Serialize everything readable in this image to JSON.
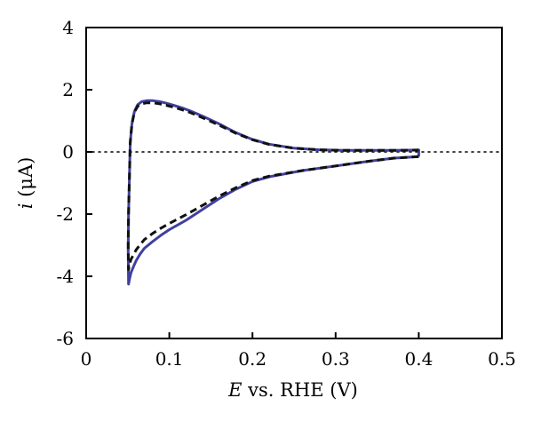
{
  "chart_data": {
    "type": "line",
    "xlabel_var": "E",
    "xlabel_rest": " vs. RHE (V)",
    "ylabel_var": "i",
    "ylabel_rest": " (μA)",
    "xlim": [
      0,
      0.5
    ],
    "ylim": [
      -6,
      4
    ],
    "xticks": [
      0,
      0.1,
      0.2,
      0.3,
      0.4,
      0.5
    ],
    "xtick_labels": [
      "0",
      "0.1",
      "0.2",
      "0.3",
      "0.4",
      "0.5"
    ],
    "yticks": [
      -6,
      -4,
      -2,
      0,
      2,
      4
    ],
    "ytick_labels": [
      "-6",
      "-4",
      "-2",
      "0",
      "2",
      "4"
    ],
    "grid": false,
    "zero_reference": {
      "y": 0,
      "style": "dotted"
    },
    "series": [
      {
        "style": "solid",
        "color": "#4040a0",
        "x": [
          0.4,
          0.37,
          0.34,
          0.3,
          0.26,
          0.22,
          0.2,
          0.18,
          0.16,
          0.14,
          0.12,
          0.1,
          0.09,
          0.08,
          0.07,
          0.065,
          0.06,
          0.057,
          0.054,
          0.052,
          0.051,
          0.0505,
          0.051,
          0.052,
          0.053,
          0.055,
          0.058,
          0.062,
          0.067,
          0.073,
          0.08,
          0.088,
          0.096,
          0.105,
          0.115,
          0.125,
          0.14,
          0.16,
          0.18,
          0.2,
          0.22,
          0.25,
          0.28,
          0.31,
          0.34,
          0.37,
          0.4,
          0.4,
          0.4
        ],
        "y": [
          -0.15,
          -0.2,
          -0.3,
          -0.45,
          -0.6,
          -0.8,
          -0.95,
          -1.2,
          -1.5,
          -1.85,
          -2.2,
          -2.5,
          -2.68,
          -2.88,
          -3.1,
          -3.28,
          -3.5,
          -3.68,
          -3.88,
          -4.1,
          -4.25,
          -3.2,
          -2.0,
          -0.8,
          0.3,
          0.9,
          1.3,
          1.52,
          1.62,
          1.65,
          1.65,
          1.62,
          1.57,
          1.5,
          1.42,
          1.32,
          1.15,
          0.9,
          0.62,
          0.4,
          0.25,
          0.12,
          0.07,
          0.05,
          0.05,
          0.05,
          0.06,
          -0.05,
          -0.15
        ]
      },
      {
        "style": "dashed",
        "color": "#111111",
        "x": [
          0.4,
          0.37,
          0.34,
          0.3,
          0.26,
          0.22,
          0.2,
          0.18,
          0.16,
          0.14,
          0.12,
          0.1,
          0.09,
          0.08,
          0.07,
          0.065,
          0.06,
          0.057,
          0.054,
          0.052,
          0.051,
          0.0505,
          0.051,
          0.052,
          0.053,
          0.055,
          0.058,
          0.062,
          0.067,
          0.073,
          0.08,
          0.088,
          0.096,
          0.105,
          0.115,
          0.125,
          0.14,
          0.16,
          0.18,
          0.2,
          0.22,
          0.25,
          0.28,
          0.31,
          0.34,
          0.37,
          0.4
        ],
        "y": [
          -0.15,
          -0.2,
          -0.3,
          -0.45,
          -0.6,
          -0.78,
          -0.92,
          -1.15,
          -1.42,
          -1.72,
          -2.02,
          -2.3,
          -2.45,
          -2.62,
          -2.82,
          -2.98,
          -3.15,
          -3.3,
          -3.45,
          -3.62,
          -3.78,
          -3.0,
          -2.0,
          -0.8,
          0.3,
          0.9,
          1.28,
          1.47,
          1.55,
          1.58,
          1.58,
          1.55,
          1.5,
          1.44,
          1.36,
          1.27,
          1.1,
          0.86,
          0.6,
          0.39,
          0.24,
          0.12,
          0.07,
          0.05,
          0.05,
          0.05,
          0.06
        ]
      }
    ]
  }
}
